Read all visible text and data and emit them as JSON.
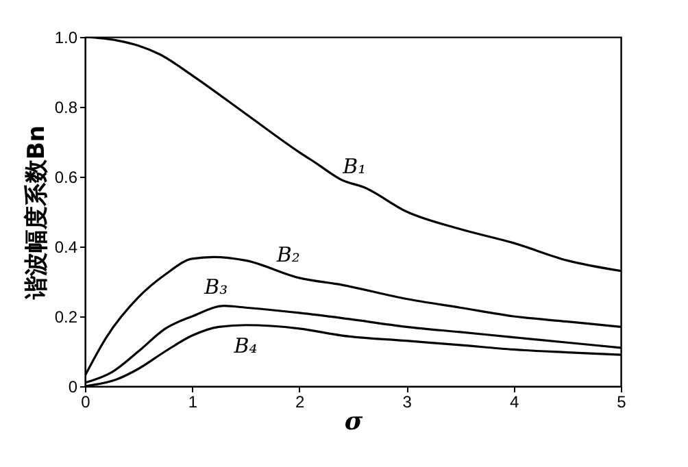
{
  "chart_data": {
    "type": "line",
    "xlabel": "σ",
    "ylabel": "谐波幅度系数Bn",
    "xlim": [
      0,
      5
    ],
    "xticks": [
      0,
      1,
      2,
      3,
      4,
      5
    ],
    "ylim": [
      0,
      1
    ],
    "yticks": [
      0,
      0.2,
      0.4,
      0.6,
      0.8,
      {
        "value": 1,
        "label": "1.0"
      }
    ],
    "grid": false,
    "legend": false,
    "marker": "none",
    "line_style": "solid",
    "series": [
      {
        "name": "B₁",
        "color": "#000000",
        "x": [
          0,
          0.3,
          0.5,
          0.7,
          1,
          1.5,
          2,
          2.15,
          2.4,
          2.6,
          3,
          3.5,
          4,
          4.5,
          5
        ],
        "values": [
          1.0,
          0.99,
          0.975,
          0.95,
          0.89,
          0.78,
          0.67,
          0.64,
          0.59,
          0.57,
          0.5,
          0.45,
          0.41,
          0.36,
          0.33
        ]
      },
      {
        "name": "B₂",
        "color": "#000000",
        "x": [
          0,
          0.2,
          0.5,
          0.75,
          1,
          1.2,
          1.5,
          2,
          2.4,
          3,
          3.5,
          4,
          4.5,
          5
        ],
        "values": [
          0.03,
          0.14,
          0.255,
          0.32,
          0.365,
          0.37,
          0.36,
          0.31,
          0.29,
          0.25,
          0.225,
          0.2,
          0.185,
          0.17
        ]
      },
      {
        "name": "B₃",
        "color": "#000000",
        "x": [
          0,
          0.25,
          0.5,
          0.75,
          1,
          1.3,
          1.5,
          2,
          2.4,
          3,
          3.5,
          4,
          4.5,
          5
        ],
        "values": [
          0.01,
          0.04,
          0.1,
          0.165,
          0.2,
          0.23,
          0.225,
          0.21,
          0.195,
          0.17,
          0.155,
          0.14,
          0.125,
          0.11
        ]
      },
      {
        "name": "B₄",
        "color": "#000000",
        "x": [
          0,
          0.3,
          0.5,
          0.75,
          1,
          1.25,
          1.5,
          2,
          2.4,
          3,
          3.5,
          4,
          4.5,
          5
        ],
        "values": [
          0,
          0.02,
          0.05,
          0.1,
          0.145,
          0.17,
          0.175,
          0.165,
          0.145,
          0.13,
          0.118,
          0.105,
          0.097,
          0.09
        ]
      }
    ]
  }
}
